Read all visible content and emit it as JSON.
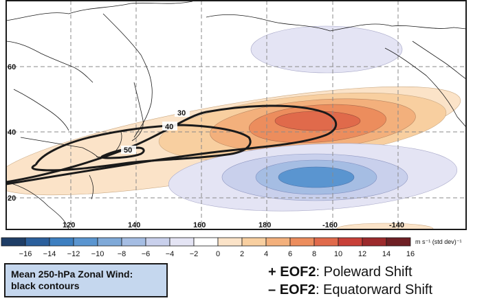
{
  "map": {
    "lat_labels": [
      "60",
      "40",
      "20"
    ],
    "lon_labels": [
      "120",
      "140",
      "160",
      "180",
      "-160",
      "-140"
    ],
    "mean_wind_contours": [
      "30",
      "40",
      "50"
    ]
  },
  "colorbar": {
    "ticks": [
      "−16",
      "−14",
      "−12",
      "−10",
      "−8",
      "−6",
      "−4",
      "−2",
      "0",
      "2",
      "4",
      "6",
      "8",
      "10",
      "12",
      "14",
      "16"
    ],
    "unit": "m s⁻¹ (std dev)⁻¹",
    "colors": [
      "#1e3d66",
      "#2b5f9c",
      "#3d7fc0",
      "#5a95d0",
      "#7fa9d8",
      "#a5bde3",
      "#c9d0ec",
      "#e4e4f4",
      "#ffffff",
      "#fbe3c8",
      "#f8cfa0",
      "#f3b07c",
      "#ec8d5d",
      "#e06a4b",
      "#c84038",
      "#9c2a2c",
      "#6e1f24"
    ]
  },
  "legend": {
    "line1": "Mean 250-hPa Zonal Wind:",
    "line2": "black contours"
  },
  "eof": {
    "plus_sign": "+ ",
    "plus_name": "EOF2",
    "plus_desc": ": Poleward Shift",
    "minus_sign": "– ",
    "minus_name": "EOF2",
    "minus_desc": ": Equatorward Shift"
  }
}
